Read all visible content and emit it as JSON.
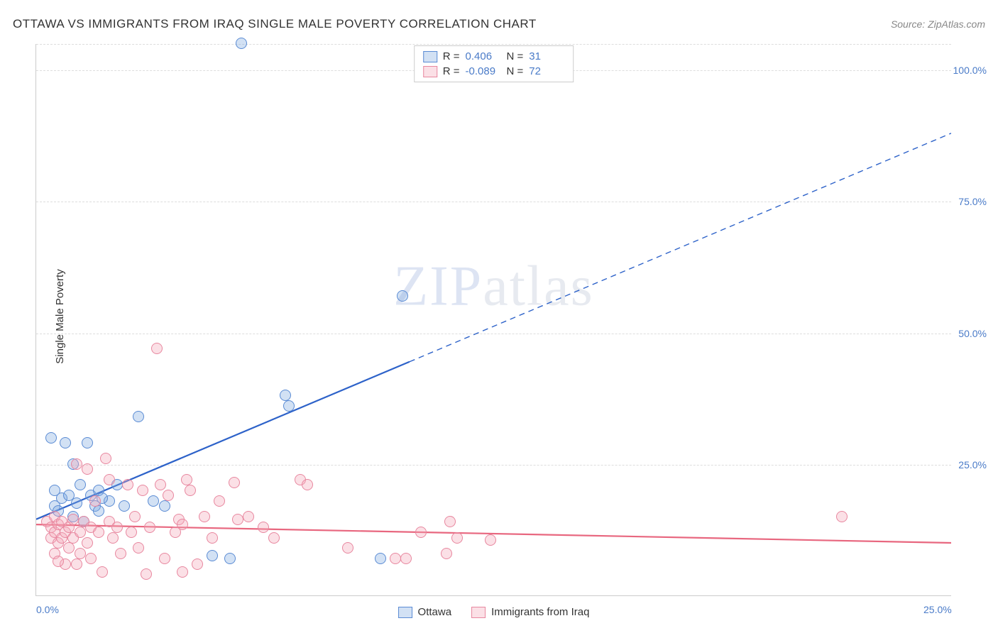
{
  "title": "OTTAWA VS IMMIGRANTS FROM IRAQ SINGLE MALE POVERTY CORRELATION CHART",
  "source": "Source: ZipAtlas.com",
  "watermark": {
    "part1": "ZIP",
    "part2": "atlas"
  },
  "y_axis_title": "Single Male Poverty",
  "chart": {
    "type": "scatter",
    "xlim": [
      0,
      25
    ],
    "ylim": [
      0,
      105
    ],
    "x_ticks": [
      {
        "value": 0,
        "label": "0.0%"
      },
      {
        "value": 25,
        "label": "25.0%"
      }
    ],
    "y_ticks": [
      {
        "value": 25,
        "label": "25.0%"
      },
      {
        "value": 50,
        "label": "50.0%"
      },
      {
        "value": 75,
        "label": "75.0%"
      },
      {
        "value": 100,
        "label": "100.0%"
      }
    ],
    "grid_color": "#dddddd",
    "axis_color": "#cccccc",
    "background_color": "#ffffff",
    "marker_radius": 8,
    "marker_stroke_width": 1.5,
    "marker_fill_opacity": 0.25,
    "series": [
      {
        "name": "Ottawa",
        "color": "#7fa8e0",
        "fill": "rgba(127,168,224,0.35)",
        "stroke": "#5a8bd4",
        "R": "0.406",
        "N": "31",
        "trend": {
          "x1": 0,
          "y1": 14.5,
          "x2": 25,
          "y2": 88,
          "solid_until_x": 10.2,
          "color": "#2d62c9",
          "width": 2.2
        },
        "points": [
          [
            0.4,
            30
          ],
          [
            0.5,
            20
          ],
          [
            0.5,
            17
          ],
          [
            0.7,
            18.5
          ],
          [
            0.8,
            29
          ],
          [
            0.9,
            19
          ],
          [
            1.0,
            25
          ],
          [
            1.0,
            15
          ],
          [
            1.1,
            17.5
          ],
          [
            1.2,
            21
          ],
          [
            1.4,
            29
          ],
          [
            1.5,
            19
          ],
          [
            1.6,
            17
          ],
          [
            1.7,
            16
          ],
          [
            1.7,
            20
          ],
          [
            2.0,
            18
          ],
          [
            2.2,
            21
          ],
          [
            2.4,
            17
          ],
          [
            2.8,
            34
          ],
          [
            3.2,
            18
          ],
          [
            3.5,
            17
          ],
          [
            4.8,
            7.5
          ],
          [
            5.3,
            7
          ],
          [
            5.6,
            105
          ],
          [
            6.8,
            38
          ],
          [
            6.9,
            36
          ],
          [
            9.4,
            7
          ],
          [
            10.0,
            57
          ],
          [
            1.3,
            14
          ],
          [
            0.6,
            16
          ],
          [
            1.8,
            18.5
          ]
        ]
      },
      {
        "name": "Immigrants from Iraq",
        "color": "#f4a6b8",
        "fill": "rgba(244,166,184,0.35)",
        "stroke": "#e8879f",
        "R": "-0.089",
        "N": "72",
        "trend": {
          "x1": 0,
          "y1": 13.5,
          "x2": 25,
          "y2": 10,
          "solid_until_x": 25,
          "color": "#e8677f",
          "width": 2.2
        },
        "points": [
          [
            0.3,
            14
          ],
          [
            0.4,
            13
          ],
          [
            0.4,
            11
          ],
          [
            0.5,
            12
          ],
          [
            0.5,
            15
          ],
          [
            0.6,
            10
          ],
          [
            0.6,
            13.5
          ],
          [
            0.7,
            11
          ],
          [
            0.7,
            14
          ],
          [
            0.8,
            12
          ],
          [
            0.8,
            6
          ],
          [
            0.9,
            13
          ],
          [
            0.9,
            9
          ],
          [
            1.0,
            14.5
          ],
          [
            1.0,
            11
          ],
          [
            1.1,
            25
          ],
          [
            1.2,
            12
          ],
          [
            1.2,
            8
          ],
          [
            1.3,
            14
          ],
          [
            1.4,
            10
          ],
          [
            1.5,
            13
          ],
          [
            1.5,
            7
          ],
          [
            1.6,
            18
          ],
          [
            1.7,
            12
          ],
          [
            1.8,
            4.5
          ],
          [
            1.9,
            26
          ],
          [
            2.0,
            14
          ],
          [
            2.1,
            11
          ],
          [
            2.2,
            13
          ],
          [
            2.3,
            8
          ],
          [
            2.5,
            21
          ],
          [
            2.6,
            12
          ],
          [
            2.7,
            15
          ],
          [
            2.8,
            9
          ],
          [
            2.9,
            20
          ],
          [
            3.0,
            4
          ],
          [
            3.1,
            13
          ],
          [
            3.3,
            47
          ],
          [
            3.5,
            7
          ],
          [
            3.6,
            19
          ],
          [
            3.8,
            12
          ],
          [
            3.9,
            14.5
          ],
          [
            4.0,
            4.5
          ],
          [
            4.1,
            22
          ],
          [
            4.4,
            6
          ],
          [
            4.6,
            15
          ],
          [
            4.8,
            11
          ],
          [
            5.0,
            18
          ],
          [
            5.4,
            21.5
          ],
          [
            5.5,
            14.5
          ],
          [
            5.8,
            15
          ],
          [
            6.2,
            13
          ],
          [
            6.5,
            11
          ],
          [
            7.2,
            22
          ],
          [
            7.4,
            21
          ],
          [
            8.5,
            9
          ],
          [
            9.8,
            7
          ],
          [
            10.1,
            7
          ],
          [
            10.5,
            12
          ],
          [
            11.2,
            8
          ],
          [
            11.3,
            14
          ],
          [
            11.5,
            11
          ],
          [
            12.4,
            10.5
          ],
          [
            1.4,
            24
          ],
          [
            2.0,
            22
          ],
          [
            0.5,
            8
          ],
          [
            0.6,
            6.5
          ],
          [
            1.1,
            6
          ],
          [
            3.4,
            21
          ],
          [
            4.2,
            20
          ],
          [
            22.0,
            15
          ],
          [
            4.0,
            13.5
          ]
        ]
      }
    ]
  },
  "legend_top": {
    "r_label": "R =",
    "n_label": "N ="
  },
  "legend_bottom_labels": [
    "Ottawa",
    "Immigrants from Iraq"
  ]
}
